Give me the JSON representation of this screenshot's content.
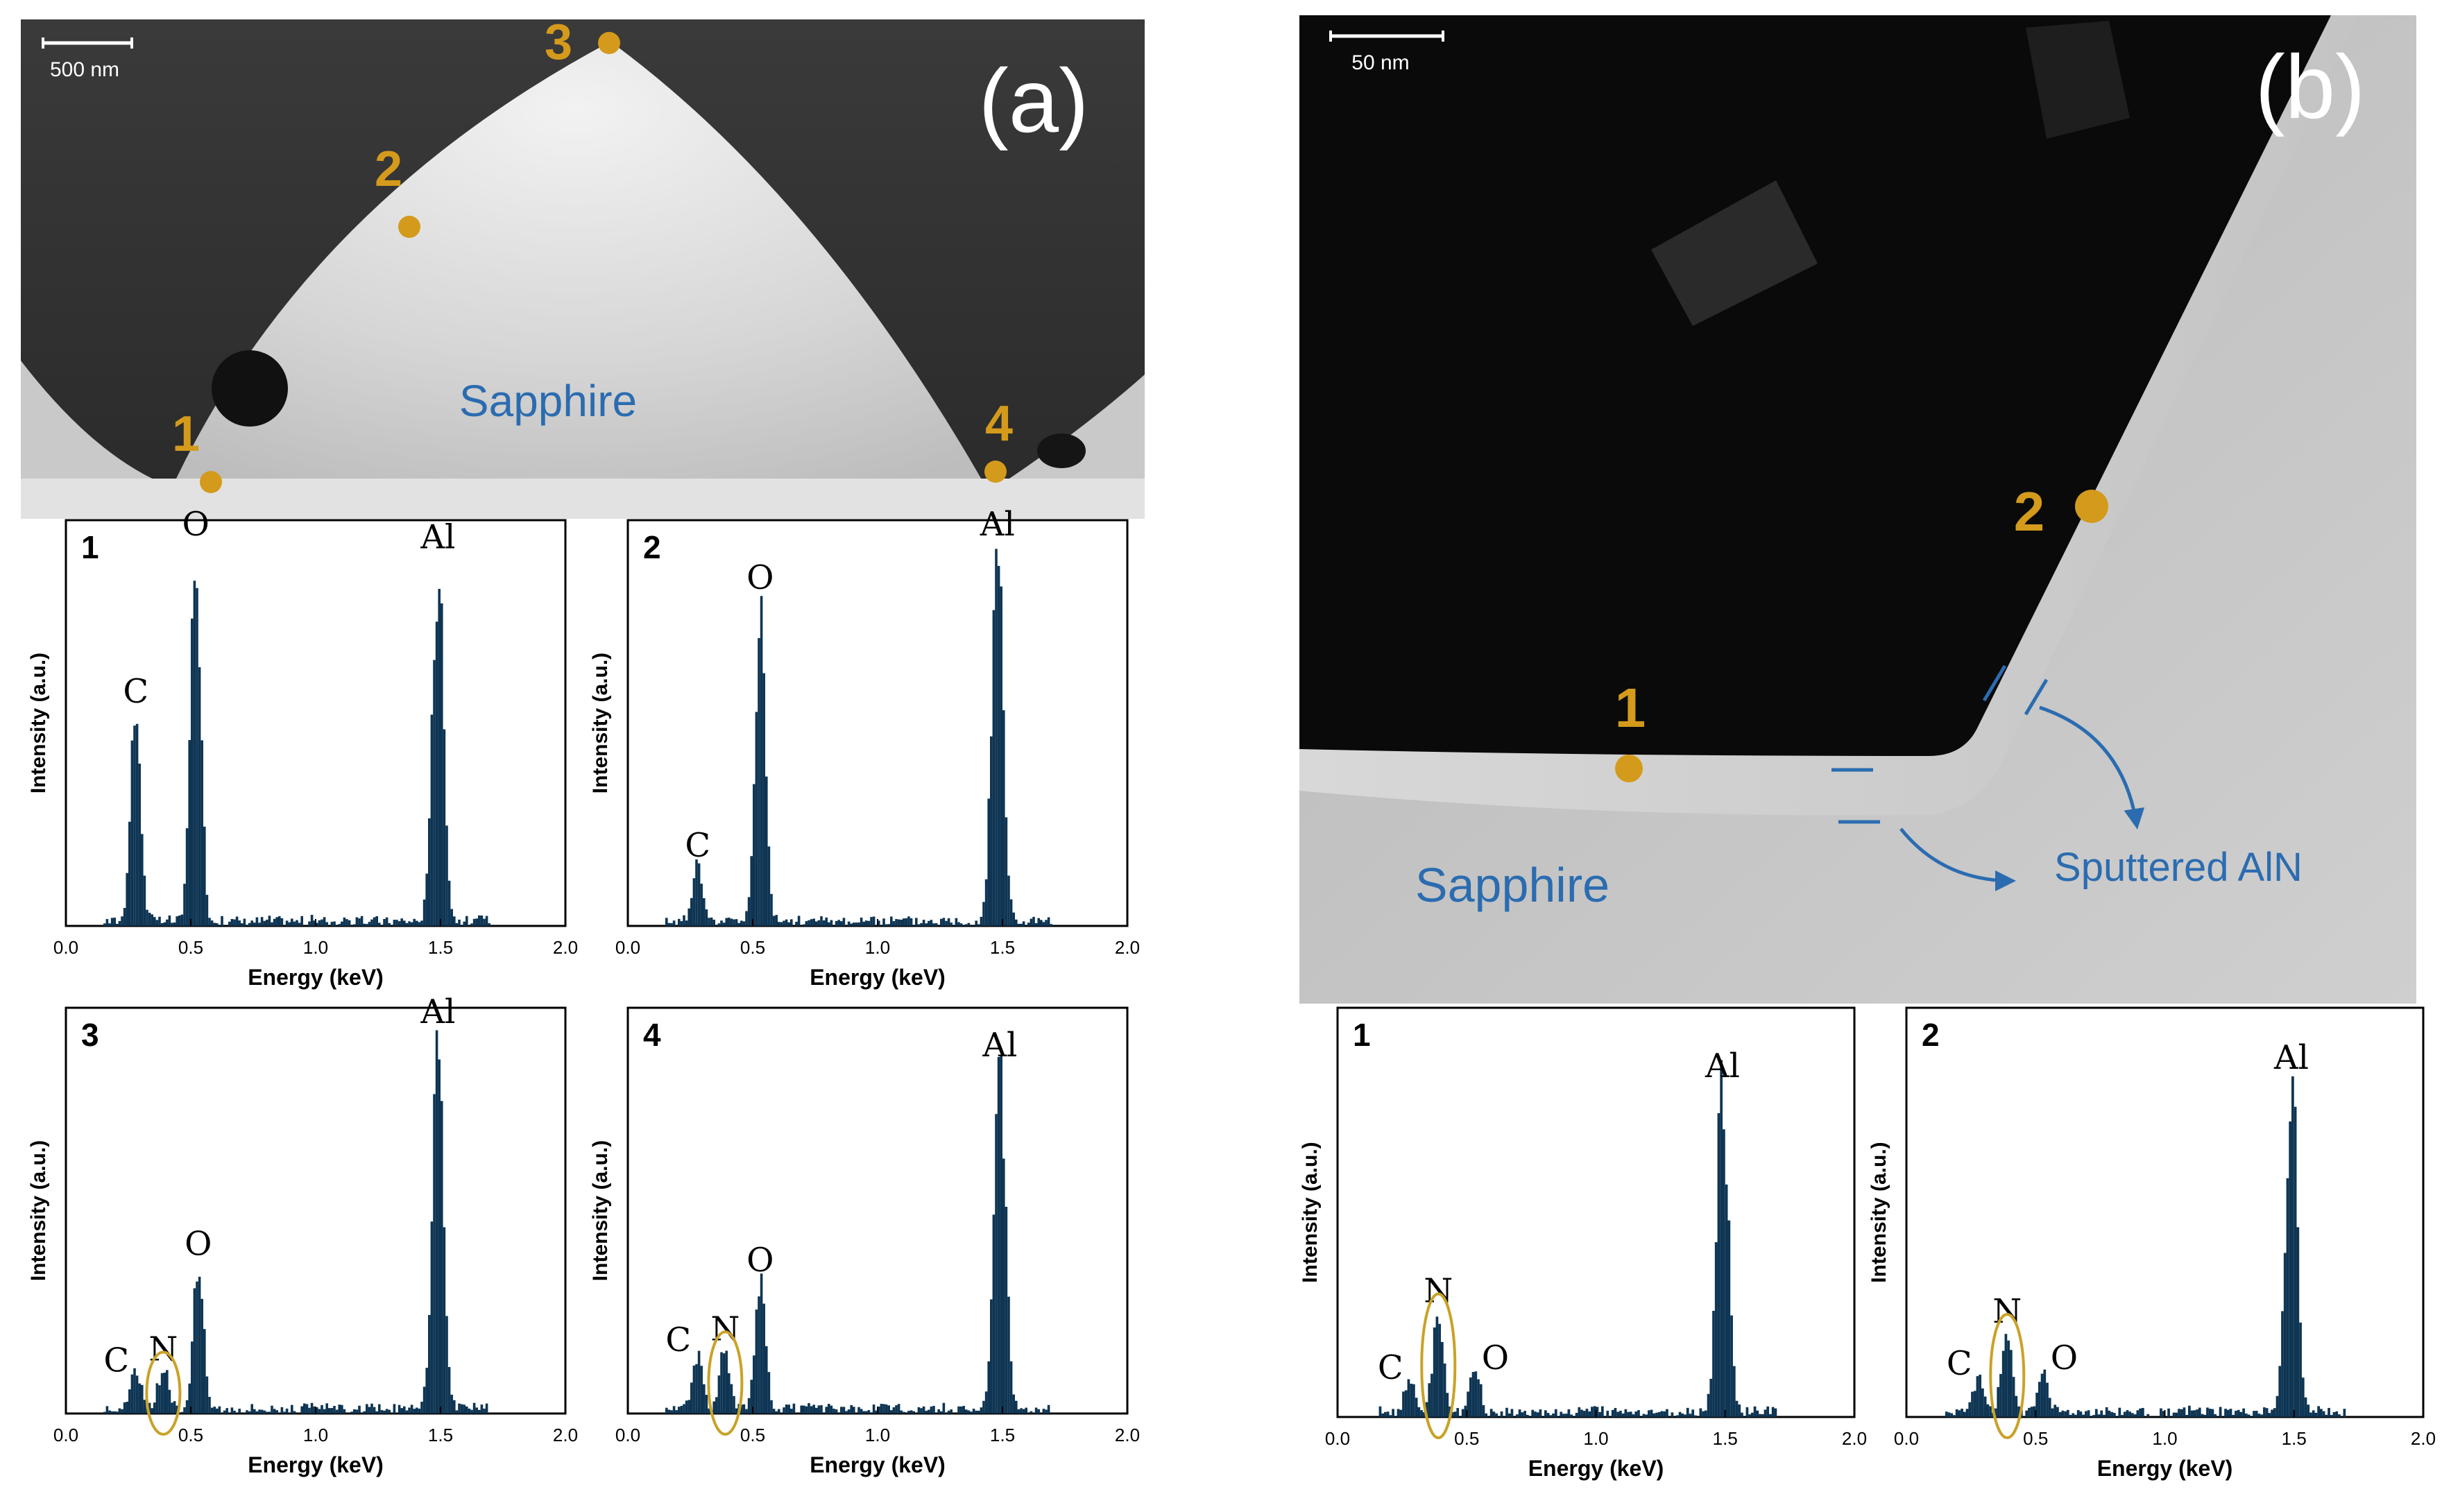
{
  "panel_a": {
    "label": "(a)",
    "scale_bar": "500 nm",
    "region_label": "Sapphire",
    "points": [
      "1",
      "2",
      "3",
      "4"
    ]
  },
  "panel_b": {
    "label": "(b)",
    "scale_bar": "50 nm",
    "region_label": "Sapphire",
    "layer_label": "Sputtered AlN",
    "points": [
      "1",
      "2"
    ]
  },
  "colors": {
    "marker": "#d49a1b",
    "annotation": "#2b6cb0",
    "bars": "#0e3553",
    "highlight_ellipse": "#c9a227"
  },
  "chart_data": [
    {
      "id": "a1",
      "type": "bar",
      "panel_number": "1",
      "xlabel": "Energy (keV)",
      "ylabel": "Intensity (a.u.)",
      "xlim": [
        0,
        2
      ],
      "ylim": [
        0,
        100
      ],
      "xticks": [
        "0.0",
        "0.5",
        "1.0",
        "1.5",
        "2.0"
      ],
      "peaks": [
        {
          "element": "C",
          "x": 0.28,
          "y": 52
        },
        {
          "element": "O",
          "x": 0.52,
          "y": 95
        },
        {
          "element": "Al",
          "x": 1.49,
          "y": 90
        }
      ]
    },
    {
      "id": "a2",
      "type": "bar",
      "panel_number": "2",
      "xlabel": "Energy (keV)",
      "ylabel": "Intensity (a.u.)",
      "xlim": [
        0,
        2
      ],
      "ylim": [
        0,
        100
      ],
      "xticks": [
        "0.0",
        "0.5",
        "1.0",
        "1.5",
        "2.0"
      ],
      "peaks": [
        {
          "element": "C",
          "x": 0.28,
          "y": 14
        },
        {
          "element": "O",
          "x": 0.53,
          "y": 80
        },
        {
          "element": "Al",
          "x": 1.48,
          "y": 97
        }
      ]
    },
    {
      "id": "a3",
      "type": "bar",
      "panel_number": "3",
      "xlabel": "Energy (keV)",
      "ylabel": "Intensity (a.u.)",
      "xlim": [
        0,
        2
      ],
      "ylim": [
        0,
        100
      ],
      "xticks": [
        "0.0",
        "0.5",
        "1.0",
        "1.5",
        "2.0"
      ],
      "peaks": [
        {
          "element": "C",
          "x": 0.28,
          "y": 9
        },
        {
          "element": "N",
          "x": 0.39,
          "y": 10
        },
        {
          "element": "O",
          "x": 0.53,
          "y": 36
        },
        {
          "element": "Al",
          "x": 1.49,
          "y": 97
        }
      ],
      "ellipse_on": "N"
    },
    {
      "id": "a4",
      "type": "bar",
      "panel_number": "4",
      "xlabel": "Energy (keV)",
      "ylabel": "Intensity (a.u.)",
      "xlim": [
        0,
        2
      ],
      "ylim": [
        0,
        100
      ],
      "xticks": [
        "0.0",
        "0.5",
        "1.0",
        "1.5",
        "2.0"
      ],
      "peaks": [
        {
          "element": "C",
          "x": 0.28,
          "y": 14
        },
        {
          "element": "N",
          "x": 0.39,
          "y": 15
        },
        {
          "element": "O",
          "x": 0.53,
          "y": 32
        },
        {
          "element": "Al",
          "x": 1.49,
          "y": 85
        }
      ],
      "ellipse_on": "N"
    },
    {
      "id": "b1",
      "type": "bar",
      "panel_number": "1",
      "xlabel": "Energy (keV)",
      "ylabel": "Intensity (a.u.)",
      "xlim": [
        0,
        2
      ],
      "ylim": [
        0,
        100
      ],
      "xticks": [
        "0.0",
        "0.5",
        "1.0",
        "1.5",
        "2.0"
      ],
      "peaks": [
        {
          "element": "C",
          "x": 0.28,
          "y": 8
        },
        {
          "element": "N",
          "x": 0.39,
          "y": 25
        },
        {
          "element": "O",
          "x": 0.53,
          "y": 10
        },
        {
          "element": "Al",
          "x": 1.49,
          "y": 80
        }
      ],
      "ellipse_on": "N"
    },
    {
      "id": "b2",
      "type": "bar",
      "panel_number": "2",
      "xlabel": "Energy (keV)",
      "ylabel": "Intensity (a.u.)",
      "xlim": [
        0,
        2
      ],
      "ylim": [
        0,
        100
      ],
      "xticks": [
        "0.0",
        "0.5",
        "1.0",
        "1.5",
        "2.0"
      ],
      "peaks": [
        {
          "element": "C",
          "x": 0.28,
          "y": 9
        },
        {
          "element": "N",
          "x": 0.39,
          "y": 20
        },
        {
          "element": "O",
          "x": 0.53,
          "y": 10
        },
        {
          "element": "Al",
          "x": 1.49,
          "y": 82
        }
      ],
      "ellipse_on": "N"
    }
  ]
}
